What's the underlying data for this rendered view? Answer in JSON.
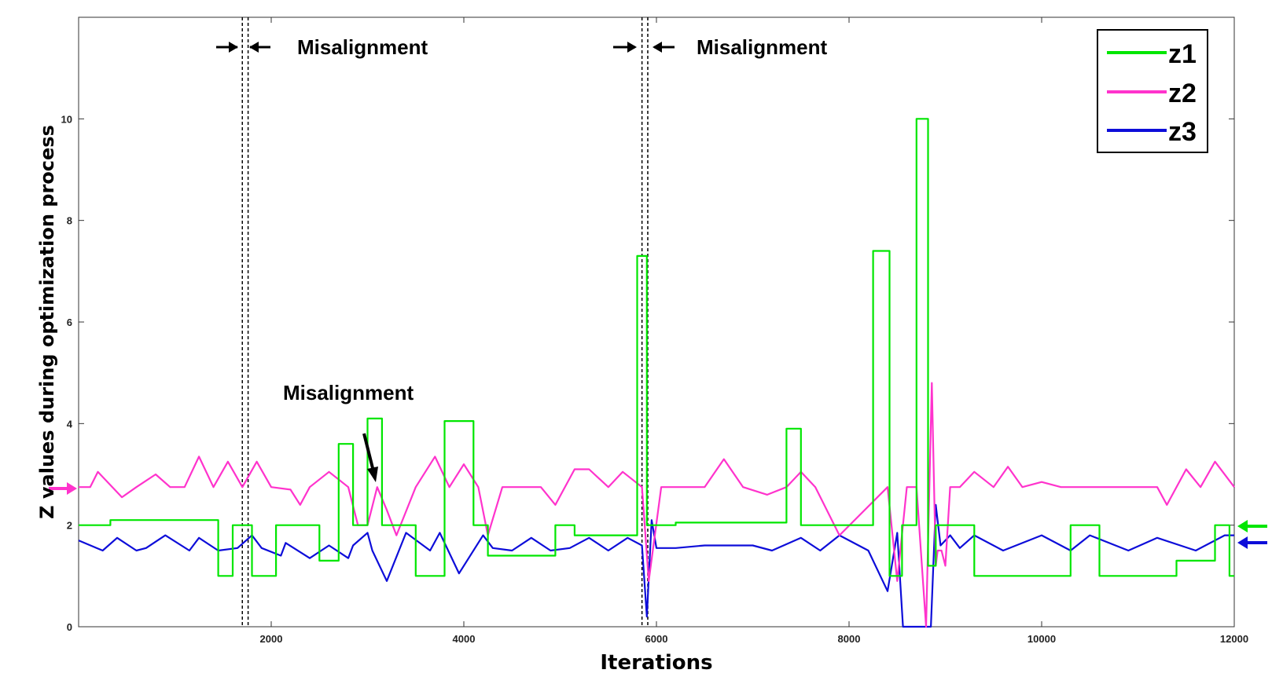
{
  "chart_data": {
    "type": "line",
    "xlabel": "Iterations",
    "ylabel": "Z values during optimization process",
    "xlim": [
      0,
      12000
    ],
    "ylim": [
      0,
      12
    ],
    "xticks": [
      2000,
      4000,
      6000,
      8000,
      10000,
      12000
    ],
    "yticks": [
      0,
      2,
      4,
      6,
      8,
      10
    ],
    "grid": false,
    "legend_position": "top-right",
    "series": [
      {
        "name": "z1",
        "color": "#00e600",
        "x": [
          0,
          330,
          330,
          1450,
          1450,
          1600,
          1600,
          1800,
          1800,
          2050,
          2050,
          2500,
          2500,
          2700,
          2700,
          2850,
          2850,
          3000,
          3000,
          3150,
          3150,
          3500,
          3500,
          3800,
          3800,
          4100,
          4100,
          4250,
          4250,
          4950,
          4950,
          5150,
          5150,
          5800,
          5800,
          5900,
          5900,
          6200,
          6200,
          7350,
          7350,
          7500,
          7500,
          8250,
          8250,
          8420,
          8420,
          8550,
          8550,
          8700,
          8700,
          8820,
          8820,
          8900,
          8900,
          9300,
          9300,
          10300,
          10300,
          10600,
          10600,
          11400,
          11400,
          11800,
          11800,
          11950,
          11950,
          12000
        ],
        "y": [
          2.0,
          2.0,
          2.1,
          2.1,
          1.0,
          1.0,
          2.0,
          2.0,
          1.0,
          1.0,
          2.0,
          2.0,
          1.3,
          1.3,
          3.6,
          3.6,
          2.0,
          2.0,
          4.1,
          4.1,
          2.0,
          2.0,
          1.0,
          1.0,
          4.05,
          4.05,
          2.0,
          2.0,
          1.4,
          1.4,
          2.0,
          2.0,
          1.8,
          1.8,
          7.3,
          7.3,
          2.0,
          2.0,
          2.05,
          2.05,
          3.9,
          3.9,
          2.0,
          2.0,
          7.4,
          7.4,
          1.0,
          1.0,
          2.0,
          2.0,
          10.0,
          10.0,
          1.2,
          1.2,
          2.0,
          2.0,
          1.0,
          1.0,
          2.0,
          2.0,
          1.0,
          1.0,
          1.3,
          1.3,
          2.0,
          2.0,
          1.0,
          1.0
        ]
      },
      {
        "name": "z2",
        "color": "#ff33cc",
        "x": [
          0,
          120,
          200,
          350,
          450,
          600,
          800,
          950,
          1100,
          1250,
          1400,
          1550,
          1700,
          1850,
          2000,
          2200,
          2300,
          2400,
          2600,
          2800,
          2900,
          3000,
          3100,
          3200,
          3300,
          3500,
          3700,
          3850,
          4000,
          4150,
          4250,
          4400,
          4600,
          4800,
          4950,
          5150,
          5300,
          5500,
          5650,
          5850,
          5920,
          6050,
          6500,
          6700,
          6900,
          7150,
          7350,
          7500,
          7650,
          7900,
          8400,
          8500,
          8600,
          8700,
          8800,
          8860,
          8900,
          8920,
          8960,
          9000,
          9050,
          9150,
          9300,
          9500,
          9650,
          9800,
          10000,
          10200,
          10500,
          11200,
          11300,
          11500,
          11650,
          11800,
          12000
        ],
        "y": [
          2.75,
          2.75,
          3.05,
          2.75,
          2.55,
          2.75,
          3.0,
          2.75,
          2.75,
          3.35,
          2.75,
          3.25,
          2.75,
          3.25,
          2.75,
          2.7,
          2.4,
          2.75,
          3.05,
          2.75,
          2.0,
          2.0,
          2.75,
          2.3,
          1.8,
          2.75,
          3.35,
          2.75,
          3.2,
          2.75,
          1.8,
          2.75,
          2.75,
          2.75,
          2.4,
          3.1,
          3.1,
          2.75,
          3.05,
          2.75,
          0.9,
          2.75,
          2.75,
          3.3,
          2.75,
          2.6,
          2.75,
          3.05,
          2.75,
          1.8,
          2.75,
          0.9,
          2.75,
          2.75,
          0.0,
          4.8,
          1.2,
          1.5,
          1.5,
          1.2,
          2.75,
          2.75,
          3.05,
          2.75,
          3.15,
          2.75,
          2.85,
          2.75,
          2.75,
          2.75,
          2.4,
          3.1,
          2.75,
          3.25,
          2.75
        ]
      },
      {
        "name": "z3",
        "color": "#0d0dd9",
        "x": [
          0,
          250,
          400,
          600,
          700,
          900,
          1150,
          1250,
          1450,
          1650,
          1800,
          1900,
          2100,
          2150,
          2400,
          2600,
          2800,
          2850,
          3000,
          3050,
          3200,
          3400,
          3650,
          3750,
          3950,
          4200,
          4300,
          4500,
          4700,
          4900,
          5100,
          5300,
          5500,
          5700,
          5850,
          5900,
          5950,
          6000,
          6080,
          6200,
          6500,
          7000,
          7200,
          7500,
          7700,
          7900,
          8200,
          8400,
          8500,
          8560,
          8640,
          8800,
          8850,
          8900,
          8950,
          9050,
          9150,
          9300,
          9600,
          10000,
          10300,
          10500,
          10900,
          11200,
          11600,
          11800,
          11900,
          12000
        ],
        "y": [
          1.7,
          1.5,
          1.75,
          1.5,
          1.55,
          1.8,
          1.5,
          1.75,
          1.5,
          1.55,
          1.8,
          1.55,
          1.4,
          1.65,
          1.35,
          1.6,
          1.35,
          1.6,
          1.85,
          1.5,
          0.9,
          1.85,
          1.5,
          1.85,
          1.05,
          1.8,
          1.55,
          1.5,
          1.75,
          1.5,
          1.55,
          1.75,
          1.5,
          1.75,
          1.6,
          0.2,
          2.1,
          1.55,
          1.55,
          1.55,
          1.6,
          1.6,
          1.5,
          1.75,
          1.5,
          1.8,
          1.5,
          0.7,
          1.85,
          0.0,
          0.0,
          0.0,
          0.0,
          2.4,
          1.6,
          1.8,
          1.55,
          1.8,
          1.5,
          1.8,
          1.5,
          1.8,
          1.5,
          1.75,
          1.5,
          1.7,
          1.8,
          1.8
        ]
      }
    ],
    "vertical_markers": [
      1700,
      1760,
      5850,
      5910
    ],
    "annotations": [
      "Misalignment",
      "Misalignment",
      "Misalignment"
    ],
    "legend_labels": [
      "z1",
      "z2",
      "z3"
    ]
  },
  "colors": {
    "z1_arrow": "#00e600",
    "z2_arrow": "#ff33cc",
    "z3_arrow": "#0d0dd9"
  }
}
